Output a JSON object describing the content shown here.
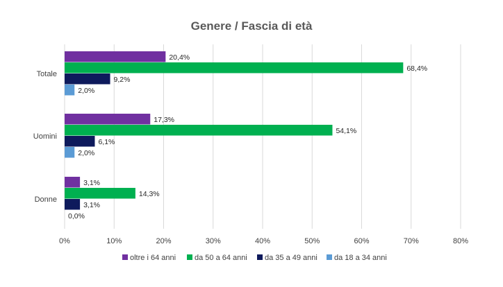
{
  "chart_data": {
    "type": "bar",
    "orientation": "horizontal",
    "title": "Genere / Fascia di età",
    "categories": [
      "Totale",
      "Uomini",
      "Donne"
    ],
    "series": [
      {
        "name": "oltre i 64 anni",
        "values": [
          20.4,
          17.3,
          3.1
        ],
        "labels": [
          "20,4%",
          "17,3%",
          "3,1%"
        ],
        "color": "#7030a0"
      },
      {
        "name": "da 50 a 64 anni",
        "values": [
          68.4,
          54.1,
          14.3
        ],
        "labels": [
          "68,4%",
          "54,1%",
          "14,3%"
        ],
        "color": "#00b050"
      },
      {
        "name": "da 35 a 49 anni",
        "values": [
          9.2,
          6.1,
          3.1
        ],
        "labels": [
          "9,2%",
          "6,1%",
          "3,1%"
        ],
        "color": "#0e1a5c"
      },
      {
        "name": "da 18 a 34 anni",
        "values": [
          2.0,
          2.0,
          0.0
        ],
        "labels": [
          "2,0%",
          "2,0%",
          "0,0%"
        ],
        "color": "#5b9bd5"
      }
    ],
    "xlim": [
      0,
      80
    ],
    "xticks": [
      0,
      10,
      20,
      30,
      40,
      50,
      60,
      70,
      80
    ],
    "xtick_labels": [
      "0%",
      "10%",
      "20%",
      "30%",
      "40%",
      "50%",
      "60%",
      "70%",
      "80%"
    ],
    "grid": true,
    "legend_position": "bottom",
    "grid_color": "#d9d9d9"
  }
}
